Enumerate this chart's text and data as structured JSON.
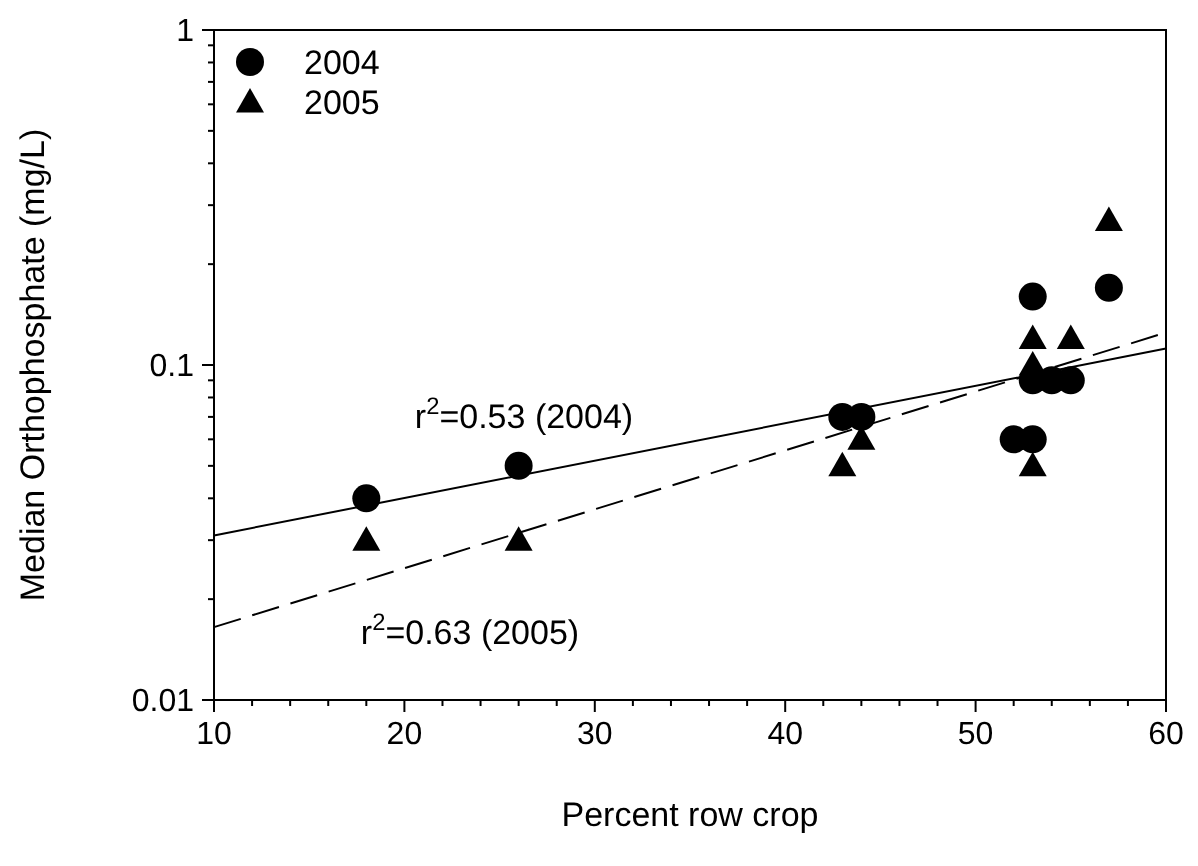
{
  "chart_data": {
    "type": "scatter",
    "xlabel": "Percent row crop",
    "ylabel": "Median Orthophosphate (mg/L)",
    "log": "y",
    "legend": "top left",
    "grid": false,
    "xlim": [
      10,
      60
    ],
    "xticks": [
      10,
      {
        "value": 12,
        "label": null
      },
      {
        "value": 14,
        "label": null
      },
      {
        "value": 16,
        "label": null
      },
      {
        "value": 18,
        "label": null
      },
      20,
      {
        "value": 22,
        "label": null
      },
      {
        "value": 24,
        "label": null
      },
      {
        "value": 26,
        "label": null
      },
      {
        "value": 28,
        "label": null
      },
      30,
      {
        "value": 32,
        "label": null
      },
      {
        "value": 34,
        "label": null
      },
      {
        "value": 36,
        "label": null
      },
      {
        "value": 38,
        "label": null
      },
      40,
      {
        "value": 42,
        "label": null
      },
      {
        "value": 44,
        "label": null
      },
      {
        "value": 46,
        "label": null
      },
      {
        "value": 48,
        "label": null
      },
      50,
      {
        "value": 52,
        "label": null
      },
      {
        "value": 54,
        "label": null
      },
      {
        "value": 56,
        "label": null
      },
      {
        "value": 58,
        "label": null
      },
      60
    ],
    "ylim": [
      0.01,
      1
    ],
    "yticks": [
      0.01,
      {
        "value": 0.02,
        "label": null
      },
      {
        "value": 0.03,
        "label": null
      },
      {
        "value": 0.04,
        "label": null
      },
      {
        "value": 0.05,
        "label": null
      },
      {
        "value": 0.06,
        "label": null
      },
      {
        "value": 0.07,
        "label": null
      },
      {
        "value": 0.08,
        "label": null
      },
      {
        "value": 0.09,
        "label": null
      },
      0.1,
      {
        "value": 0.2,
        "label": null
      },
      {
        "value": 0.3,
        "label": null
      },
      {
        "value": 0.4,
        "label": null
      },
      {
        "value": 0.5,
        "label": null
      },
      {
        "value": 0.6,
        "label": null
      },
      {
        "value": 0.7,
        "label": null
      },
      {
        "value": 0.8,
        "label": null
      },
      {
        "value": 0.9,
        "label": null
      },
      1
    ],
    "series": [
      {
        "name": "2004",
        "marker": "circle",
        "color": "#000000",
        "x": [
          18,
          26,
          43,
          44,
          52,
          53,
          53,
          53,
          54,
          55,
          57
        ],
        "values": [
          0.04,
          0.05,
          0.07,
          0.07,
          0.06,
          0.06,
          0.16,
          0.09,
          0.09,
          0.09,
          0.17
        ]
      },
      {
        "name": "2005",
        "marker": "triangle",
        "color": "#000000",
        "x": [
          18,
          26,
          43,
          44,
          53,
          53,
          53,
          55,
          57
        ],
        "values": [
          0.03,
          0.03,
          0.05,
          0.06,
          0.05,
          0.1,
          0.12,
          0.12,
          0.27
        ]
      },
      {
        "type": "line",
        "marker": "none",
        "line_style": "solid",
        "color": "#000000",
        "x": [
          10,
          60
        ],
        "values": [
          0.031,
          0.112
        ]
      },
      {
        "type": "line",
        "marker": "none",
        "line_style": "dashed",
        "color": "#000000",
        "x": [
          10,
          60
        ],
        "values": [
          0.0165,
          0.125
        ]
      }
    ],
    "annotations": [
      "r$^{2}$=0.53 (2004)",
      "r$^{2}$=0.63 (2005)"
    ]
  }
}
